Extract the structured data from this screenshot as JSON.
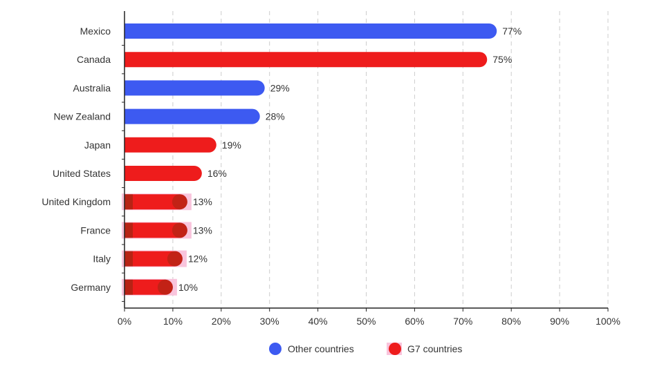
{
  "chart_data": {
    "type": "bar",
    "orientation": "horizontal",
    "categories": [
      "Mexico",
      "Canada",
      "Australia",
      "New Zealand",
      "Japan",
      "United States",
      "United Kingdom",
      "France",
      "Italy",
      "Germany"
    ],
    "values": [
      77,
      75,
      29,
      28,
      19,
      16,
      13,
      13,
      12,
      10
    ],
    "value_labels": [
      "77%",
      "75%",
      "29%",
      "28%",
      "19%",
      "16%",
      "13%",
      "13%",
      "12%",
      "10%"
    ],
    "groups": [
      "Other countries",
      "G7 countries",
      "Other countries",
      "Other countries",
      "G7 countries",
      "G7 countries",
      "G7 countries",
      "G7 countries",
      "G7 countries",
      "G7 countries"
    ],
    "xlim": [
      0,
      100
    ],
    "x_ticks": [
      0,
      10,
      20,
      30,
      40,
      50,
      60,
      70,
      80,
      90,
      100
    ],
    "x_tick_labels": [
      "0%",
      "10%",
      "20%",
      "30%",
      "40%",
      "50%",
      "60%",
      "70%",
      "80%",
      "90%",
      "100%"
    ],
    "grid": "vertical dashed",
    "legend": {
      "placement": "bottom-center",
      "items": [
        {
          "label": "Other countries",
          "color": "#3d5af1"
        },
        {
          "label": "G7 countries",
          "color": "#ee1c1c"
        }
      ]
    },
    "colors": {
      "Other countries": "#3d5af1",
      "G7 countries": "#ee1c1c",
      "highlight": "#f9c4dc",
      "overlay": "#8b2a10"
    },
    "highlighted_categories": [
      "United Kingdom",
      "France",
      "Italy",
      "Germany"
    ]
  }
}
